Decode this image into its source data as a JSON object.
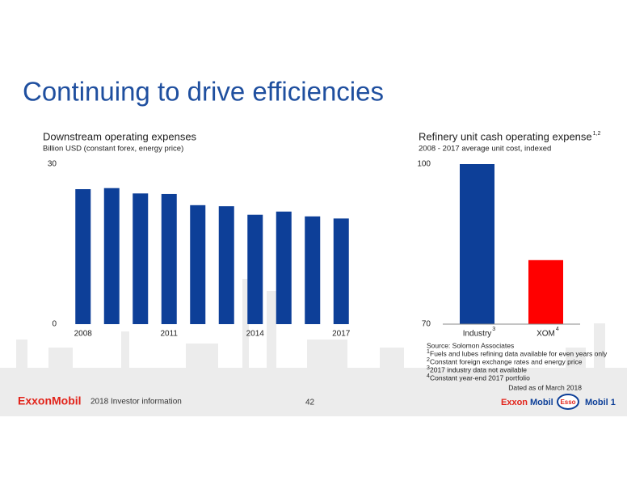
{
  "slide": {
    "title": "Continuing to drive efficiencies"
  },
  "chart_data": [
    {
      "type": "bar",
      "title": "Downstream operating expenses",
      "subtitle": "Billion USD (constant forex, energy price)",
      "categories": [
        "2008",
        null,
        null,
        "2011",
        null,
        null,
        "2014",
        null,
        null,
        "2017"
      ],
      "values": [
        25.3,
        25.5,
        24.5,
        24.4,
        22.3,
        22.1,
        20.5,
        21.1,
        20.2,
        19.8
      ],
      "color": "#0d3f98",
      "ylim": [
        0,
        30
      ],
      "yticks": [
        0,
        30
      ],
      "grid": false
    },
    {
      "type": "bar",
      "title": "Refinery unit cash operating expense",
      "title_note": "1,2",
      "subtitle": "2008 - 2017 average unit cost, indexed",
      "categories": [
        "Industry",
        "XOM"
      ],
      "category_notes": [
        "3",
        "4"
      ],
      "values": [
        100,
        82
      ],
      "colors": [
        "#0d3f98",
        "#ff0000"
      ],
      "ylim": [
        70,
        100
      ],
      "yticks": [
        70,
        100
      ],
      "grid": false
    }
  ],
  "notes": {
    "source": "Source: Solomon Associates",
    "footnotes": [
      {
        "marker": "1",
        "text": "Fuels and lubes refining data available for even years only"
      },
      {
        "marker": "2",
        "text": "Constant foreign exchange rates and energy price"
      },
      {
        "marker": "3",
        "text": "2017 industry data not available"
      },
      {
        "marker": "4",
        "text": "Constant year-end 2017 portfolio"
      }
    ],
    "dated": "Dated as of March 2018"
  },
  "footer": {
    "logo": "ExxonMobil",
    "label": "2018 Investor information",
    "page": "42",
    "brands": [
      "Exxon",
      "Mobil",
      "Esso",
      "Mobil 1"
    ]
  }
}
